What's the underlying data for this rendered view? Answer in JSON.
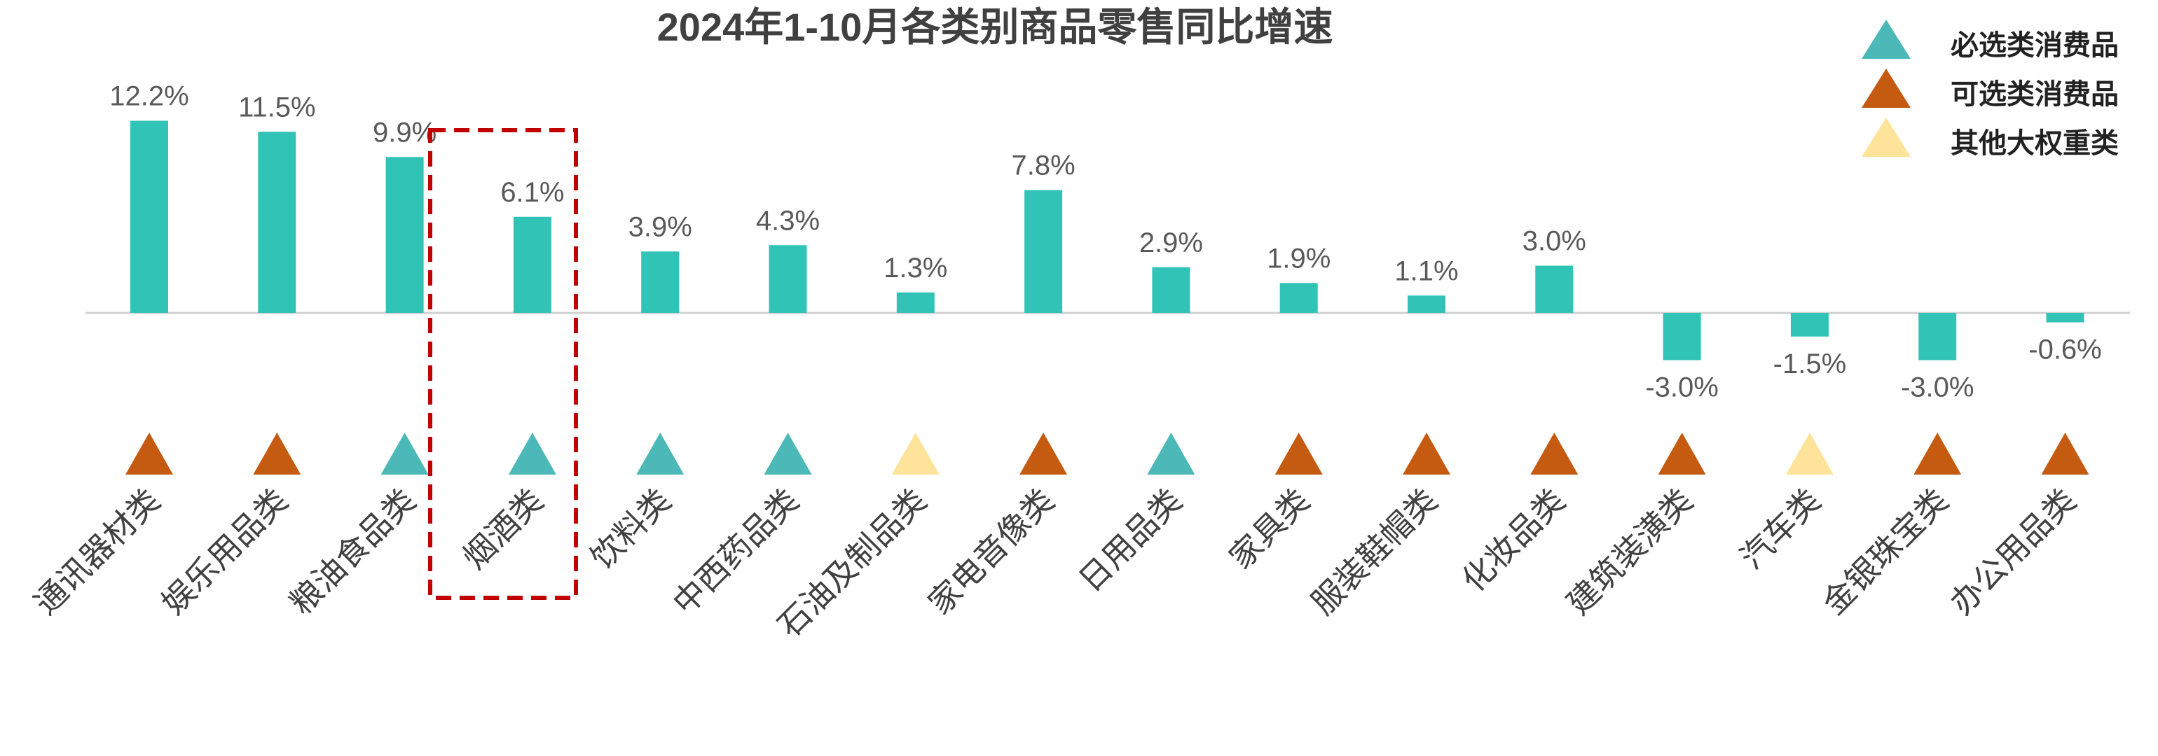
{
  "chart_data": {
    "type": "bar",
    "title": "2024年1-10月各类别商品零售同比增速",
    "xlabel": "",
    "ylabel": "",
    "ylim": [
      -4,
      13
    ],
    "grid": false,
    "legend_position": "top-right",
    "categories": [
      "通讯器材类",
      "娱乐用品类",
      "粮油食品类",
      "烟酒类",
      "饮料类",
      "中西药品类",
      "石油及制品类",
      "家电音像类",
      "日用品类",
      "家具类",
      "服装鞋帽类",
      "化妆品类",
      "建筑装潢类",
      "汽车类",
      "金银珠宝类",
      "办公用品类"
    ],
    "values": [
      12.2,
      11.5,
      9.9,
      6.1,
      3.9,
      4.3,
      1.3,
      7.8,
      2.9,
      1.9,
      1.1,
      3.0,
      -3.0,
      -1.5,
      -3.0,
      -0.6
    ],
    "value_labels": [
      "12.2%",
      "11.5%",
      "9.9%",
      "6.1%",
      "3.9%",
      "4.3%",
      "1.3%",
      "7.8%",
      "2.9%",
      "1.9%",
      "1.1%",
      "3.0%",
      "-3.0%",
      "-1.5%",
      "-3.0%",
      "-0.6%"
    ],
    "groups": [
      "可选",
      "可选",
      "必选",
      "必选",
      "必选",
      "必选",
      "其他",
      "可选",
      "必选",
      "可选",
      "可选",
      "可选",
      "可选",
      "其他",
      "可选",
      "可选"
    ],
    "legend": [
      {
        "key": "必选",
        "label": "必选类消费品",
        "color": "#4db8b8"
      },
      {
        "key": "可选",
        "label": "可选类消费品",
        "color": "#c55a11"
      },
      {
        "key": "其他",
        "label": "其他大权重类",
        "color": "#fde49a"
      }
    ],
    "bar_color": "#31c3b6",
    "highlight": {
      "category": "烟酒类",
      "color": "#c00000"
    }
  }
}
